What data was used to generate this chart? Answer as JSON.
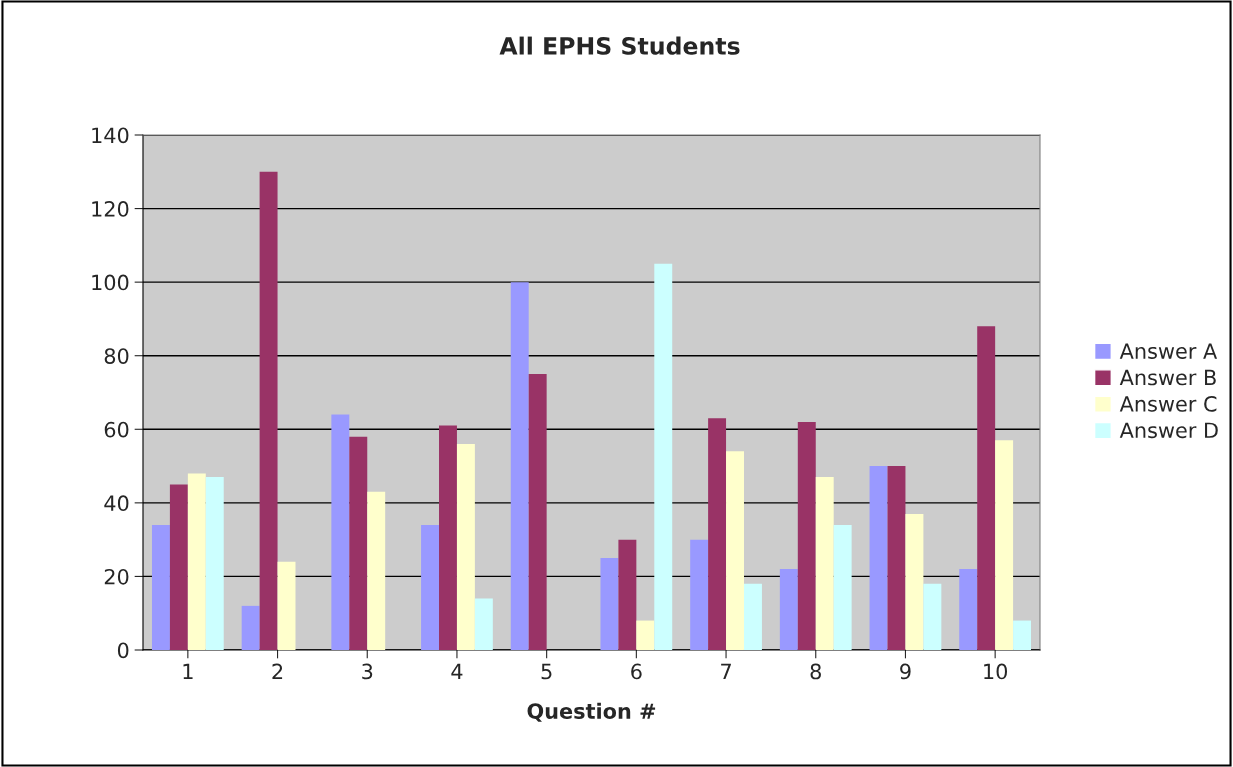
{
  "chart_data": {
    "type": "bar",
    "title": "All EPHS Students",
    "xlabel": "Question #",
    "categories": [
      "1",
      "2",
      "3",
      "4",
      "5",
      "6",
      "7",
      "8",
      "9",
      "10"
    ],
    "series": [
      {
        "name": "Answer A",
        "color": "#9999ff",
        "values": [
          34,
          12,
          64,
          34,
          100,
          25,
          30,
          22,
          50,
          22
        ]
      },
      {
        "name": "Answer B",
        "color": "#993366",
        "values": [
          45,
          130,
          58,
          61,
          75,
          30,
          63,
          62,
          50,
          88
        ]
      },
      {
        "name": "Answer C",
        "color": "#ffffcc",
        "values": [
          48,
          24,
          43,
          56,
          null,
          8,
          54,
          47,
          37,
          57
        ]
      },
      {
        "name": "Answer D",
        "color": "#ccffff",
        "values": [
          47,
          null,
          null,
          14,
          null,
          105,
          18,
          34,
          18,
          8
        ]
      }
    ],
    "ylim": [
      0,
      140
    ],
    "yticks": [
      0,
      20,
      40,
      60,
      80,
      100,
      120,
      140
    ],
    "grid": "y",
    "legend": "right"
  }
}
